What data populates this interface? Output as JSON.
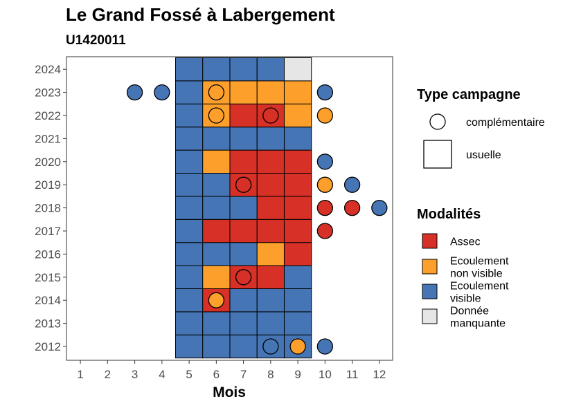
{
  "chart_data": {
    "type": "heatmap",
    "title": "Le Grand Fossé à Labergement",
    "subtitle": "U1420011",
    "xlabel": "Mois",
    "ylabel": "",
    "x_ticks": [
      "1",
      "2",
      "3",
      "4",
      "5",
      "6",
      "7",
      "8",
      "9",
      "10",
      "11",
      "12"
    ],
    "y_ticks": [
      "2012",
      "2013",
      "2014",
      "2015",
      "2016",
      "2017",
      "2018",
      "2019",
      "2020",
      "2021",
      "2022",
      "2023",
      "2024"
    ],
    "grid": false,
    "legend_position": "right",
    "colors": {
      "Assec": "#d73027",
      "Ecoulement non visible": "#fd9f2b",
      "Ecoulement visible": "#4575b4",
      "Donnée manquante": "#e6e6e6"
    },
    "tiles": [
      {
        "year": 2012,
        "months": [
          "V",
          "V",
          "V",
          "V",
          "V"
        ]
      },
      {
        "year": 2013,
        "months": [
          "V",
          "V",
          "V",
          "V",
          "V"
        ]
      },
      {
        "year": 2014,
        "months": [
          "V",
          "A",
          "V",
          "V",
          "V"
        ]
      },
      {
        "year": 2015,
        "months": [
          "V",
          "N",
          "A",
          "A",
          "V"
        ]
      },
      {
        "year": 2016,
        "months": [
          "V",
          "V",
          "V",
          "N",
          "A"
        ]
      },
      {
        "year": 2017,
        "months": [
          "V",
          "A",
          "A",
          "A",
          "A"
        ]
      },
      {
        "year": 2018,
        "months": [
          "V",
          "V",
          "V",
          "A",
          "A"
        ]
      },
      {
        "year": 2019,
        "months": [
          "V",
          "V",
          "A",
          "A",
          "A"
        ]
      },
      {
        "year": 2020,
        "months": [
          "V",
          "N",
          "A",
          "A",
          "A"
        ]
      },
      {
        "year": 2021,
        "months": [
          "V",
          "V",
          "V",
          "V",
          "V"
        ]
      },
      {
        "year": 2022,
        "months": [
          "V",
          "N",
          "A",
          "A",
          "N"
        ]
      },
      {
        "year": 2023,
        "months": [
          "V",
          "N",
          "N",
          "N",
          "N"
        ]
      },
      {
        "year": 2024,
        "months": [
          "V",
          "V",
          "V",
          "V",
          "M"
        ]
      }
    ],
    "tile_month_start": 5,
    "points": [
      {
        "year": 2012,
        "month": 8,
        "mod": "V"
      },
      {
        "year": 2012,
        "month": 9,
        "mod": "N"
      },
      {
        "year": 2012,
        "month": 10,
        "mod": "V"
      },
      {
        "year": 2014,
        "month": 6,
        "mod": "N"
      },
      {
        "year": 2015,
        "month": 7,
        "mod": "A"
      },
      {
        "year": 2017,
        "month": 10,
        "mod": "A"
      },
      {
        "year": 2018,
        "month": 10,
        "mod": "A"
      },
      {
        "year": 2018,
        "month": 11,
        "mod": "A"
      },
      {
        "year": 2018,
        "month": 12,
        "mod": "V"
      },
      {
        "year": 2019,
        "month": 7,
        "mod": "A"
      },
      {
        "year": 2019,
        "month": 10,
        "mod": "N"
      },
      {
        "year": 2019,
        "month": 11,
        "mod": "V"
      },
      {
        "year": 2020,
        "month": 10,
        "mod": "V"
      },
      {
        "year": 2022,
        "month": 6,
        "mod": "N"
      },
      {
        "year": 2022,
        "month": 8,
        "mod": "A"
      },
      {
        "year": 2022,
        "month": 10,
        "mod": "N"
      },
      {
        "year": 2023,
        "month": 3,
        "mod": "V"
      },
      {
        "year": 2023,
        "month": 4,
        "mod": "V"
      },
      {
        "year": 2023,
        "month": 6,
        "mod": "N"
      },
      {
        "year": 2023,
        "month": 10,
        "mod": "V"
      }
    ],
    "legend_type": {
      "title": "Type campagne",
      "items": [
        "complémentaire",
        "usuelle"
      ]
    },
    "legend_modalites": {
      "title": "Modalités",
      "items": [
        {
          "key": "A",
          "lines": [
            "Assec"
          ]
        },
        {
          "key": "N",
          "lines": [
            "Ecoulement",
            "non visible"
          ]
        },
        {
          "key": "V",
          "lines": [
            "Ecoulement",
            "visible"
          ]
        },
        {
          "key": "M",
          "lines": [
            "Donnée",
            "manquante"
          ]
        }
      ]
    }
  }
}
